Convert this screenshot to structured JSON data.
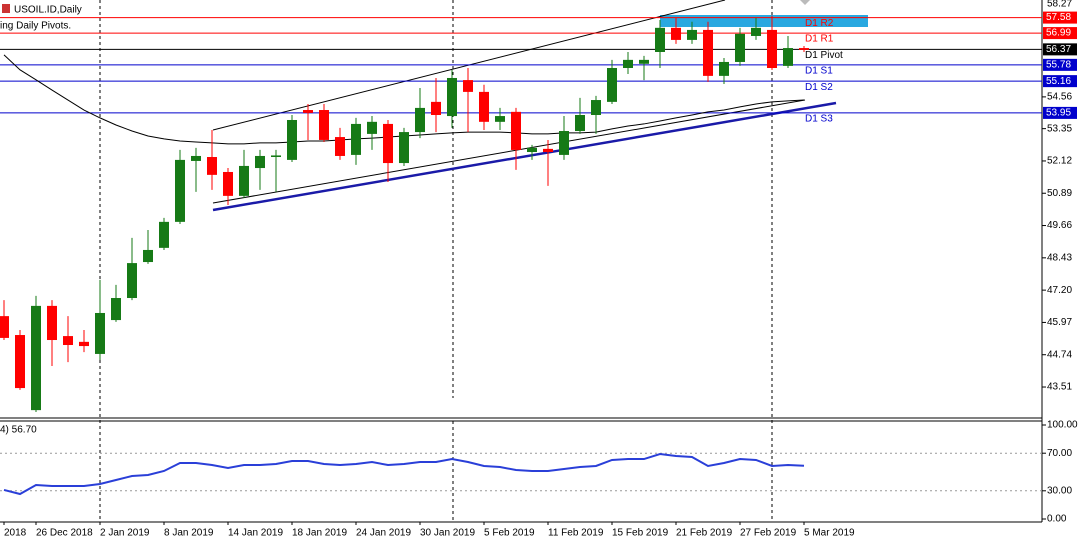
{
  "chart_data": {
    "type": "candlestick",
    "title": "USOIL.ID,Daily",
    "subtitle": "ing Daily Pivots.",
    "categories": [
      "2018",
      null,
      "26 Dec 2018",
      null,
      null,
      null,
      "2 Jan 2019",
      null,
      null,
      null,
      "8 Jan 2019",
      null,
      null,
      null,
      "14 Jan 2019",
      null,
      null,
      null,
      "18 Jan 2019",
      null,
      null,
      null,
      "24 Jan 2019",
      null,
      null,
      null,
      "30 Jan 2019",
      null,
      null,
      null,
      "5 Feb 2019",
      null,
      null,
      null,
      "11 Feb 2019",
      null,
      null,
      null,
      "15 Feb 2019",
      null,
      null,
      null,
      "21 Feb 2019",
      null,
      null,
      null,
      "27 Feb 2019",
      null,
      null,
      null,
      "5 Mar 2019"
    ],
    "open": [
      46.21,
      45.49,
      42.63,
      46.6,
      45.45,
      45.23,
      44.77,
      46.06,
      46.9,
      48.27,
      48.81,
      49.8,
      52.12,
      52.27,
      51.7,
      50.79,
      51.85,
      52.27,
      52.16,
      54.06,
      54.06,
      53.03,
      52.35,
      53.15,
      53.53,
      52.04,
      53.22,
      54.37,
      53.83,
      55.2,
      54.75,
      53.61,
      53.99,
      52.46,
      52.58,
      52.35,
      53.26,
      53.87,
      54.37,
      55.66,
      55.82,
      56.27,
      57.19,
      56.73,
      57.11,
      55.36,
      55.89,
      56.88,
      57.11,
      55.74,
      56.42
    ],
    "high": [
      46.82,
      45.68,
      46.98,
      46.82,
      46.21,
      45.68,
      47.59,
      47.4,
      49.19,
      49.49,
      49.95,
      52.54,
      52.62,
      53.3,
      51.85,
      52.54,
      52.54,
      52.54,
      53.87,
      54.29,
      54.29,
      53.38,
      53.76,
      53.83,
      53.68,
      53.38,
      54.9,
      55.28,
      55.59,
      55.66,
      55.02,
      54.14,
      54.14,
      52.73,
      52.92,
      53.83,
      54.52,
      54.6,
      55.97,
      56.27,
      56.12,
      57.49,
      57.57,
      57.42,
      57.42,
      56.04,
      57.19,
      57.57,
      57.65,
      56.88,
      56.5
    ],
    "low": [
      45.3,
      43.4,
      42.56,
      44.31,
      44.46,
      44.84,
      44.54,
      45.99,
      46.82,
      48.2,
      48.73,
      49.72,
      50.94,
      51.02,
      50.44,
      50.71,
      51.02,
      50.94,
      52.08,
      52.92,
      52.84,
      52.16,
      51.97,
      52.54,
      51.32,
      51.93,
      52.99,
      53.22,
      53.38,
      53.22,
      53.3,
      53.3,
      51.78,
      52.16,
      51.17,
      52.16,
      53.15,
      53.15,
      54.29,
      55.43,
      55.2,
      55.66,
      56.58,
      56.58,
      55.13,
      55.05,
      55.74,
      56.73,
      55.59,
      55.66,
      56.27
    ],
    "close": [
      45.38,
      43.47,
      46.6,
      45.3,
      45.11,
      45.07,
      46.33,
      46.9,
      48.23,
      48.73,
      49.8,
      52.16,
      52.31,
      51.59,
      50.79,
      51.93,
      52.31,
      52.33,
      53.68,
      53.95,
      52.92,
      52.31,
      53.53,
      53.61,
      52.04,
      53.22,
      54.14,
      53.87,
      55.28,
      54.75,
      53.61,
      53.83,
      52.54,
      52.62,
      52.46,
      53.26,
      53.87,
      54.44,
      55.66,
      55.97,
      55.97,
      57.19,
      56.73,
      57.11,
      55.36,
      55.89,
      56.96,
      57.19,
      55.66,
      56.42,
      56.35
    ],
    "up_color": "#167a16",
    "down_color": "#ff0000",
    "ylim": [
      42.33,
      58.25
    ],
    "yticks": [
      43.51,
      44.74,
      45.97,
      {
        "value": 47.2,
        "label": "47.20"
      },
      48.43,
      49.66,
      50.89,
      52.12,
      53.35,
      54.56,
      58.27
    ],
    "moving_average": {
      "color": "#000000",
      "values": [
        56.16,
        55.59,
        55.21,
        54.82,
        54.44,
        54.06,
        53.76,
        53.49,
        53.26,
        53.07,
        52.96,
        52.88,
        52.84,
        52.81,
        52.77,
        52.77,
        52.81,
        52.81,
        52.84,
        52.88,
        52.88,
        52.92,
        52.96,
        52.99,
        53.03,
        53.07,
        53.11,
        53.15,
        53.19,
        53.22,
        53.22,
        53.22,
        53.19,
        53.15,
        53.15,
        53.19,
        53.19,
        53.22,
        53.34,
        53.45,
        53.53,
        53.64,
        53.76,
        53.87,
        53.99,
        54.06,
        54.18,
        54.29,
        54.37,
        54.41,
        54.44
      ]
    },
    "pivots": [
      {
        "name": "D1 R2",
        "value": 57.58,
        "color": "#ff0000"
      },
      {
        "name": "D1 R1",
        "value": 56.99,
        "color": "#ff0000"
      },
      {
        "name": "D1 Pivot",
        "value": 56.37,
        "color": "#000000"
      },
      {
        "name": "D1 S1",
        "value": 55.78,
        "color": "#0000cc"
      },
      {
        "name": "D1 S2",
        "value": 55.16,
        "color": "#0000cc"
      },
      {
        "name": "D1 S3",
        "value": 53.95,
        "color": "#0000cc"
      }
    ],
    "rsi": {
      "label": "4) 56.70",
      "color": "#2a3fd8",
      "ylim": [
        0,
        100
      ],
      "yticks": [
        {
          "value": 100,
          "label": "100.00"
        },
        {
          "value": 70,
          "label": "70.00"
        },
        {
          "value": 30,
          "label": "30.00"
        },
        {
          "value": 0,
          "label": "0.00"
        }
      ],
      "values": [
        30.9,
        26.6,
        36.2,
        35.1,
        35.1,
        35.1,
        37.2,
        41.5,
        45.7,
        46.8,
        51.1,
        59.6,
        59.6,
        57.4,
        54.3,
        57.4,
        57.4,
        58.5,
        61.7,
        61.7,
        58.5,
        57.4,
        58.5,
        60.6,
        57.4,
        58.5,
        60.6,
        60.6,
        63.8,
        60.6,
        56.4,
        55.3,
        52.1,
        51.1,
        51.1,
        53.2,
        55.3,
        56.4,
        62.8,
        63.8,
        63.8,
        69.1,
        67.0,
        66.0,
        56.4,
        59.6,
        63.8,
        62.8,
        56.4,
        57.4,
        56.7
      ]
    }
  }
}
